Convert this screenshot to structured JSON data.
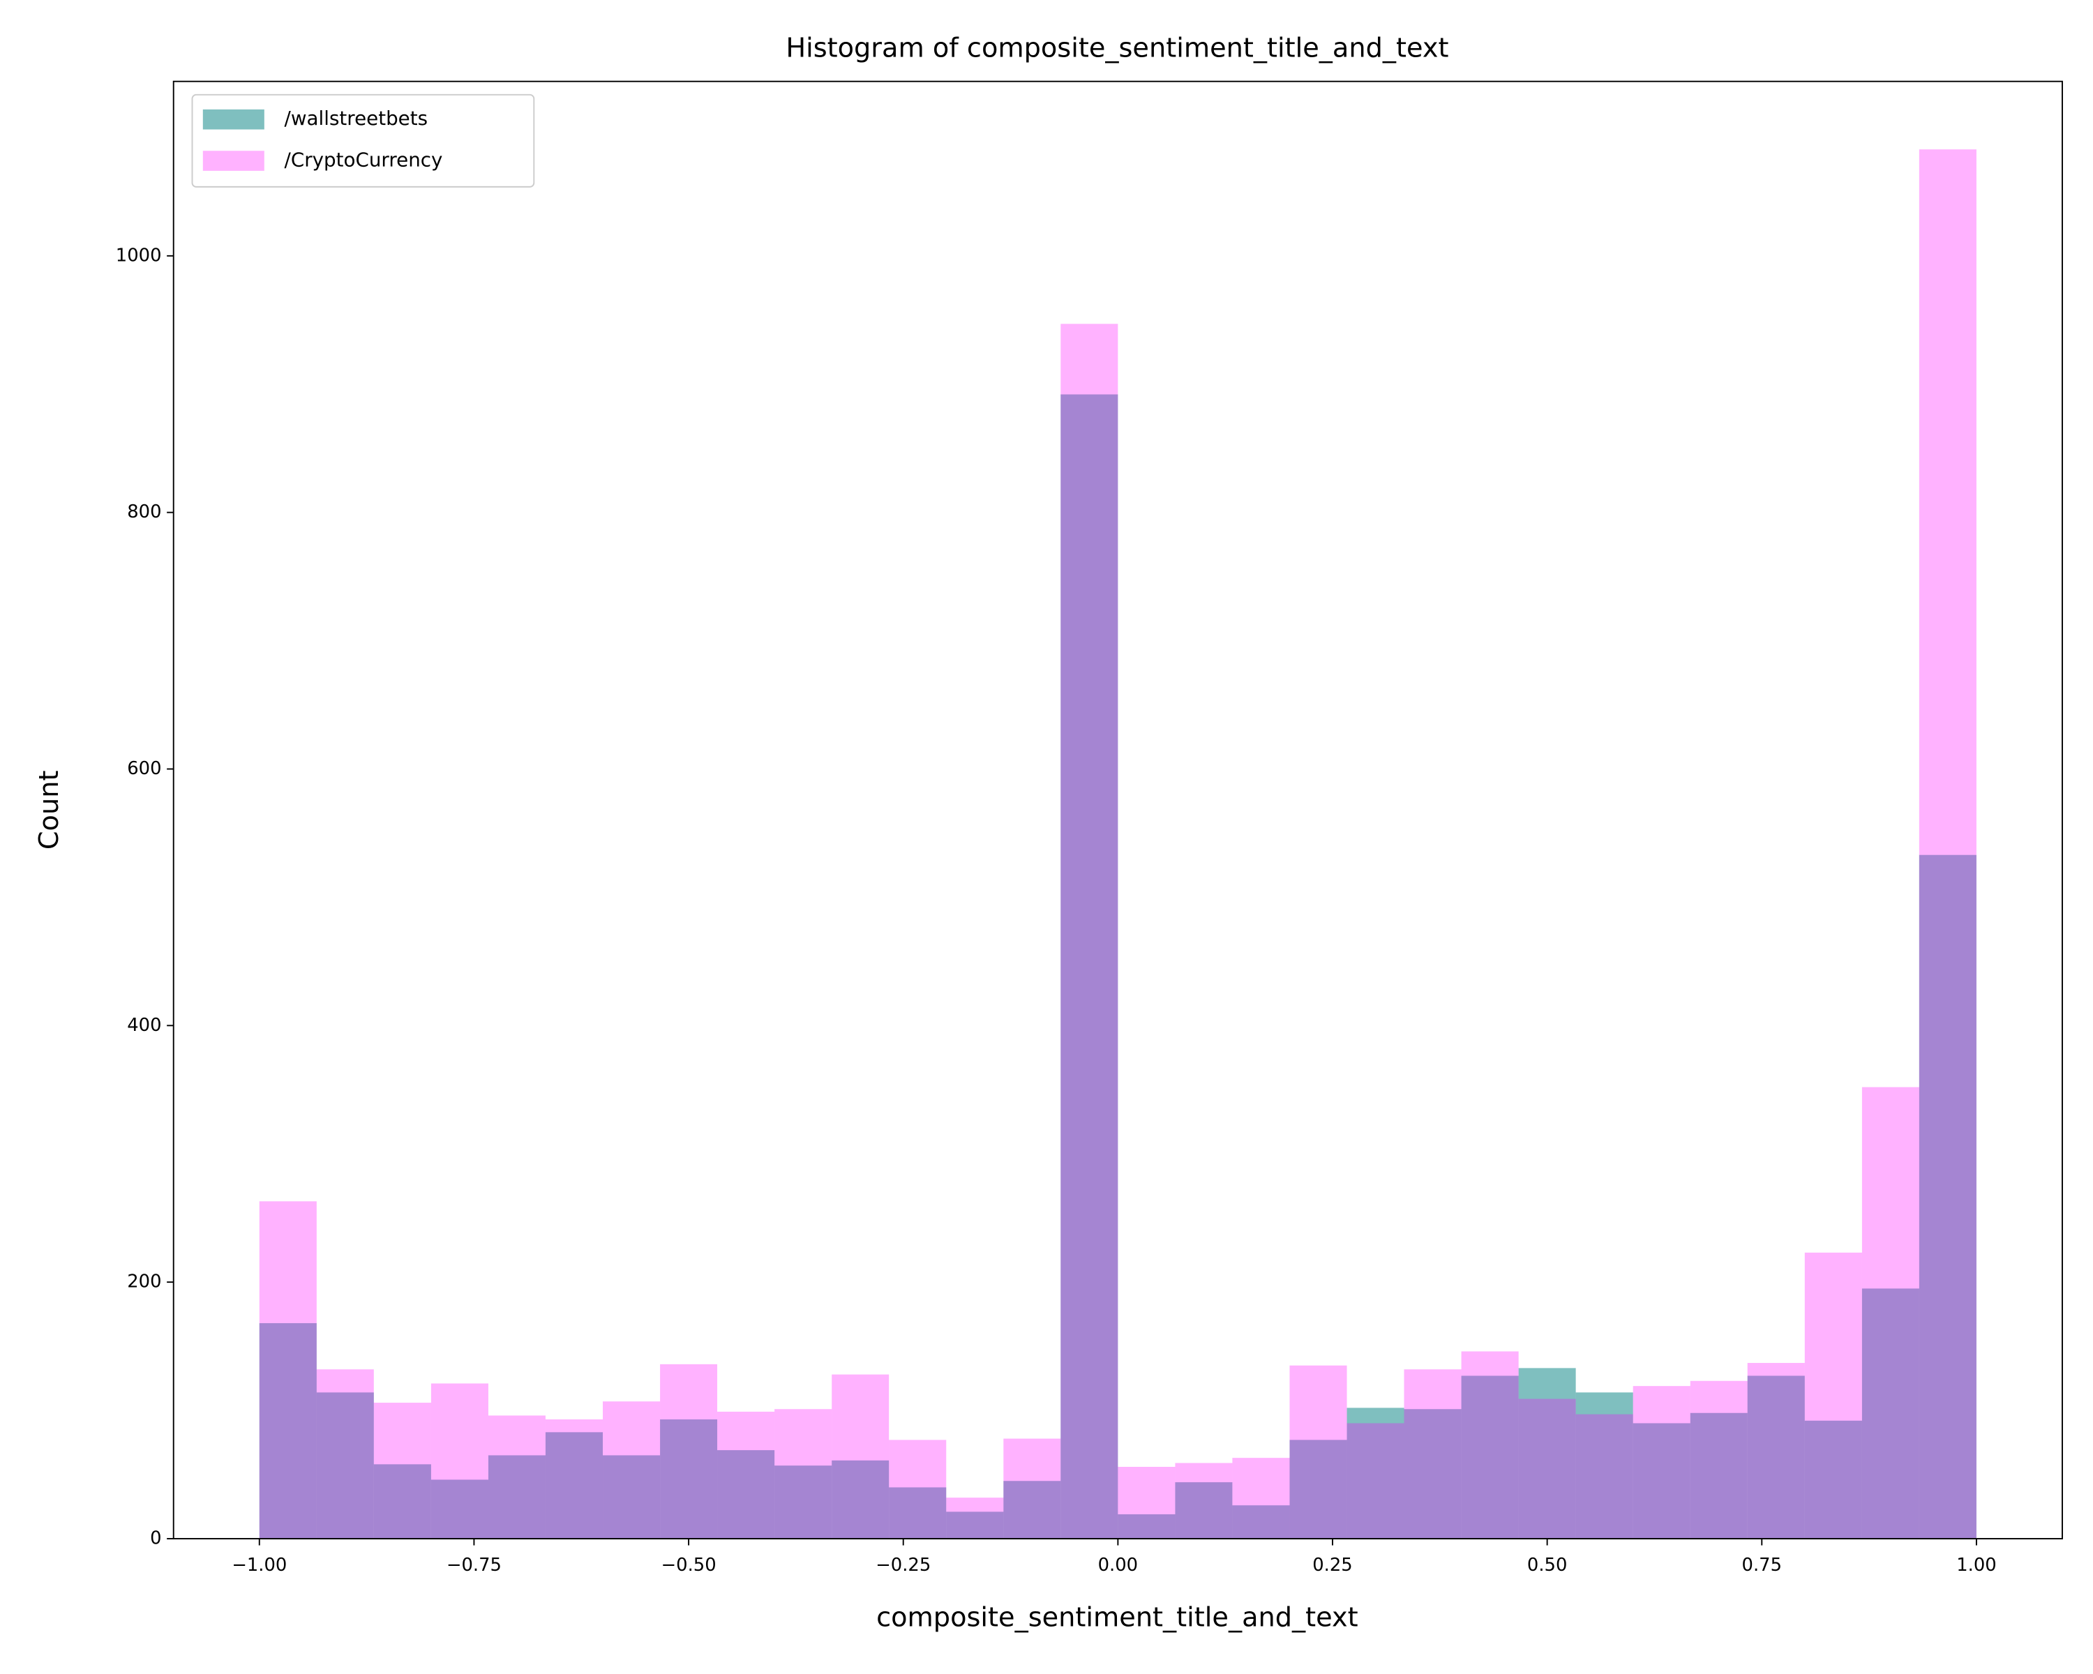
{
  "chart_data": {
    "type": "histogram",
    "title": "Histogram of composite_sentiment_title_and_text",
    "xlabel": "composite_sentiment_title_and_text",
    "ylabel": "Count",
    "bins": [
      -1,
      -0.9333,
      -0.8667,
      -0.8,
      -0.7333,
      -0.6667,
      -0.6,
      -0.5333,
      -0.4667,
      -0.4,
      -0.3333,
      -0.2667,
      -0.2,
      -0.1333,
      -0.0667,
      0,
      0.0667,
      0.1333,
      0.2,
      0.2667,
      0.3333,
      0.4,
      0.4667,
      0.5333,
      0.6,
      0.6667,
      0.7333,
      0.8,
      0.8667,
      0.9333,
      1
    ],
    "series": [
      {
        "name": "/wallstreetbets",
        "color": "#008080",
        "opacity": 0.5,
        "values": [
          168,
          114,
          58,
          46,
          65,
          83,
          65,
          93,
          69,
          57,
          61,
          40,
          21,
          45,
          892,
          19,
          44,
          26,
          77,
          102,
          101,
          127,
          133,
          114,
          90,
          98,
          127,
          92,
          195,
          533
        ]
      },
      {
        "name": "/CryptoCurrency",
        "color": "#ff00ff",
        "opacity": 0.3,
        "values": [
          263,
          132,
          106,
          121,
          96,
          93,
          107,
          136,
          99,
          101,
          128,
          77,
          32,
          78,
          947,
          56,
          59,
          63,
          135,
          90,
          132,
          146,
          109,
          97,
          119,
          123,
          137,
          223,
          352,
          1083
        ]
      }
    ],
    "xlim": [
      -1.1,
      1.1
    ],
    "ylim": [
      0,
      1136
    ],
    "xticks": [
      {
        "value": -1,
        "label": "−1.00"
      },
      {
        "value": -0.75,
        "label": "−0.75"
      },
      {
        "value": -0.5,
        "label": "−0.50"
      },
      {
        "value": -0.25,
        "label": "−0.25"
      },
      {
        "value": 0,
        "label": "0.00"
      },
      {
        "value": 0.25,
        "label": "0.25"
      },
      {
        "value": 0.5,
        "label": "0.50"
      },
      {
        "value": 0.75,
        "label": "0.75"
      },
      {
        "value": 1,
        "label": "1.00"
      }
    ],
    "yticks": [
      0,
      200,
      400,
      600,
      800,
      1000
    ],
    "legend": "upper left",
    "grid": false
  }
}
